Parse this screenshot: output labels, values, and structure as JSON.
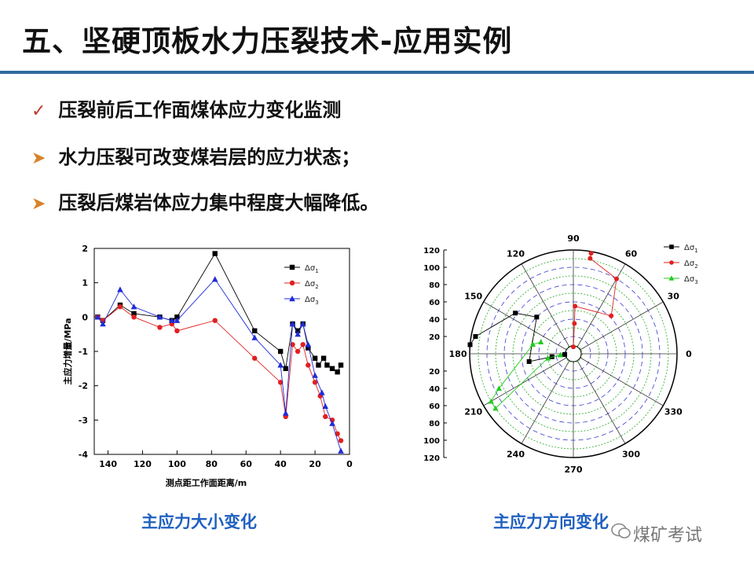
{
  "slide": {
    "title": "五、坚硬顶板水力压裂技术-应用实例",
    "bullets": [
      {
        "icon": "check-icon",
        "text": "压裂前后工作面煤体应力变化监测"
      },
      {
        "icon": "arrow-icon",
        "text": "水力压裂可改变煤岩层的应力状态；"
      },
      {
        "icon": "arrow-icon",
        "text": "压裂后煤岩体应力集中程度大幅降低。"
      }
    ],
    "captions": {
      "left": "主应力大小变化",
      "right": "主应力方向变化"
    },
    "watermark": "煤矿考试",
    "accent": "#2f6a9e"
  },
  "chart_data": [
    {
      "type": "line",
      "xlabel": "测点距工作面距离/m",
      "ylabel": "主应力增量/MPa",
      "xlim": [
        148,
        0
      ],
      "ylim": [
        -4,
        2
      ],
      "x_ticks": [
        "140",
        "120",
        "100",
        "80",
        "60",
        "40",
        "20",
        "0"
      ],
      "y_ticks": [
        "2",
        "1",
        "0",
        "-1",
        "-2",
        "-3",
        "-4"
      ],
      "legend": [
        "Δσ1",
        "Δσ2",
        "Δσ3"
      ],
      "series": [
        {
          "name": "Δσ1",
          "color": "#000000",
          "marker": "square",
          "x": [
            146,
            143,
            133,
            125,
            110,
            103,
            100,
            78,
            55,
            40,
            37,
            33,
            30,
            27,
            24,
            20,
            18,
            15,
            13,
            10,
            7,
            5
          ],
          "y": [
            0,
            -0.1,
            0.35,
            0.1,
            0,
            -0.1,
            0,
            1.85,
            -0.4,
            -1,
            -1.5,
            -0.2,
            -0.4,
            -0.2,
            -0.9,
            -1.2,
            -1.4,
            -1.2,
            -1.4,
            -1.5,
            -1.6,
            -1.4
          ]
        },
        {
          "name": "Δσ2",
          "color": "#e02020",
          "marker": "circle",
          "x": [
            146,
            143,
            133,
            125,
            110,
            103,
            100,
            78,
            55,
            40,
            37,
            33,
            30,
            27,
            24,
            20,
            17,
            14,
            10,
            7,
            5
          ],
          "y": [
            0,
            -0.1,
            0.3,
            0,
            -0.3,
            -0.2,
            -0.4,
            -0.1,
            -1.2,
            -1.9,
            -2.9,
            -0.8,
            -1,
            -0.8,
            -1.4,
            -1.9,
            -2.3,
            -2.9,
            -3,
            -3.4,
            -3.6
          ]
        },
        {
          "name": "Δσ3",
          "color": "#1f2bd8",
          "marker": "triangle",
          "x": [
            146,
            143,
            133,
            125,
            110,
            103,
            100,
            78,
            55,
            40,
            37,
            33,
            30,
            27,
            24,
            20,
            16,
            14,
            10,
            5
          ],
          "y": [
            0,
            -0.2,
            0.8,
            0.3,
            0,
            -0.1,
            -0.1,
            1.1,
            -0.6,
            -1.4,
            -2.8,
            -0.2,
            -0.5,
            -0.2,
            -0.8,
            -1.7,
            -2.2,
            -2.6,
            -3.1,
            -3.9
          ]
        }
      ]
    },
    {
      "type": "scatter",
      "polar": true,
      "r_ticks": [
        "120",
        "100",
        "80",
        "60",
        "40",
        "20"
      ],
      "angle_ticks": [
        "0",
        "30",
        "60",
        "90",
        "120",
        "150",
        "180",
        "210",
        "240",
        "270",
        "300",
        "330"
      ],
      "legend": [
        "Δσ1",
        "Δσ2",
        "Δσ3"
      ],
      "series": [
        {
          "name": "Δσ1",
          "color": "#000000",
          "marker": "square",
          "points": [
            {
              "theta": 175,
              "r": 120
            },
            {
              "theta": 170,
              "r": 115
            },
            {
              "theta": 145,
              "r": 82
            },
            {
              "theta": 135,
              "r": 60
            },
            {
              "theta": 190,
              "r": 52
            },
            {
              "theta": 188,
              "r": 25
            },
            {
              "theta": 185,
              "r": 10
            }
          ]
        },
        {
          "name": "Δσ2",
          "color": "#e02020",
          "marker": "circle",
          "points": [
            {
              "theta": 80,
              "r": 118
            },
            {
              "theta": 80,
              "r": 112
            },
            {
              "theta": 60,
              "r": 100
            },
            {
              "theta": 45,
              "r": 62
            },
            {
              "theta": 88,
              "r": 55
            },
            {
              "theta": 88,
              "r": 35
            },
            {
              "theta": 90,
              "r": 8
            }
          ]
        },
        {
          "name": "Δσ3",
          "color": "#22cc22",
          "marker": "triangle",
          "points": [
            {
              "theta": 160,
              "r": 40
            },
            {
              "theta": 167,
              "r": 48
            },
            {
              "theta": 205,
              "r": 95
            },
            {
              "theta": 210,
              "r": 110
            },
            {
              "theta": 215,
              "r": 110
            },
            {
              "theta": 190,
              "r": 30
            },
            {
              "theta": 185,
              "r": 15
            }
          ]
        }
      ]
    }
  ]
}
